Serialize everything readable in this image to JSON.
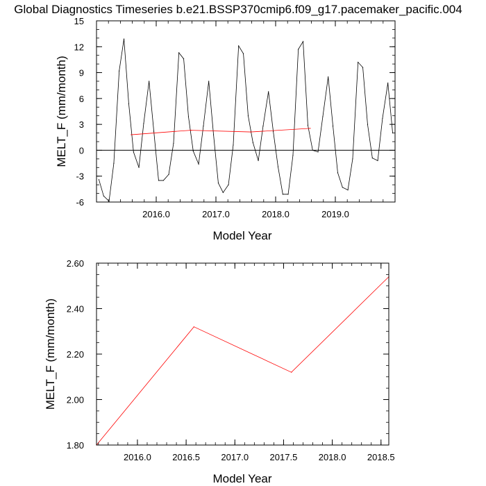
{
  "title": "Global Diagnostics Timeseries b.e21.BSSP370cmip6.f09_g17.pacemaker_pacific.004",
  "colors": {
    "monthly": "#000000",
    "annual": "#ff0000",
    "zero_line": "#000000"
  },
  "chart_data": [
    {
      "type": "line",
      "xlabel": "Model Year",
      "ylabel": "MELT_F (mm/month)",
      "xlim": [
        2015.0,
        2020.0
      ],
      "ylim": [
        -6,
        15
      ],
      "xticks": [
        2016.0,
        2017.0,
        2018.0,
        2019.0
      ],
      "xtick_labels": [
        "2016.0",
        "2017.0",
        "2018.0",
        "2019.0"
      ],
      "yticks": [
        -6,
        -3,
        0,
        3,
        6,
        9,
        12,
        15
      ],
      "ytick_labels": [
        "-6",
        "-3",
        "0",
        "3",
        "6",
        "9",
        "12",
        "15"
      ],
      "reference_line": 0,
      "series": [
        {
          "style": "monthly",
          "x": [
            2015.04,
            2015.12,
            2015.21,
            2015.29,
            2015.38,
            2015.46,
            2015.54,
            2015.62,
            2015.71,
            2015.79,
            2015.88,
            2015.96,
            2016.04,
            2016.12,
            2016.21,
            2016.29,
            2016.38,
            2016.46,
            2016.54,
            2016.62,
            2016.71,
            2016.79,
            2016.88,
            2016.96,
            2017.04,
            2017.12,
            2017.21,
            2017.29,
            2017.38,
            2017.46,
            2017.54,
            2017.62,
            2017.71,
            2017.79,
            2017.88,
            2017.96,
            2018.04,
            2018.12,
            2018.21,
            2018.29,
            2018.38,
            2018.46,
            2018.54,
            2018.62,
            2018.71,
            2018.79,
            2018.88,
            2018.96,
            2019.04,
            2019.12,
            2019.21,
            2019.29,
            2019.38,
            2019.46,
            2019.54,
            2019.62,
            2019.71,
            2019.79,
            2019.88,
            2019.96
          ],
          "y": [
            -3.4,
            -5.3,
            -5.9,
            -1.5,
            9.2,
            12.9,
            5.4,
            -0.2,
            -2.0,
            3.1,
            8.0,
            2.2,
            -3.5,
            -3.5,
            -2.8,
            0.8,
            11.3,
            10.6,
            3.9,
            -0.1,
            -1.6,
            2.8,
            8.0,
            1.8,
            -3.8,
            -4.9,
            -4.0,
            0.6,
            12.1,
            11.2,
            4.0,
            0.9,
            -1.2,
            2.8,
            6.8,
            2.2,
            -1.9,
            -5.1,
            -5.1,
            -0.6,
            11.7,
            12.6,
            2.9,
            0.0,
            -0.2,
            3.9,
            8.5,
            2.8,
            -2.6,
            -4.3,
            -4.6,
            -1.0,
            10.2,
            9.6,
            3.0,
            -0.9,
            -1.2,
            3.7,
            7.8,
            2.0
          ]
        },
        {
          "style": "annual",
          "x": [
            2015.58,
            2016.58,
            2017.58,
            2018.58
          ],
          "y": [
            1.8,
            2.32,
            2.12,
            2.54
          ]
        }
      ]
    },
    {
      "type": "line",
      "xlabel": "Model Year",
      "ylabel": "MELT_F (mm/month)",
      "xlim": [
        2015.58,
        2018.58
      ],
      "ylim": [
        1.8,
        2.6
      ],
      "xticks": [
        2016.0,
        2016.5,
        2017.0,
        2017.5,
        2018.0,
        2018.5
      ],
      "xtick_labels": [
        "2016.0",
        "2016.5",
        "2017.0",
        "2017.5",
        "2018.0",
        "2018.5"
      ],
      "yticks": [
        1.8,
        2.0,
        2.2,
        2.4,
        2.6
      ],
      "ytick_labels": [
        "1.80",
        "2.00",
        "2.20",
        "2.40",
        "2.60"
      ],
      "series": [
        {
          "style": "annual",
          "x": [
            2015.58,
            2016.58,
            2017.58,
            2018.58
          ],
          "y": [
            1.8,
            2.32,
            2.12,
            2.54
          ]
        }
      ]
    }
  ]
}
